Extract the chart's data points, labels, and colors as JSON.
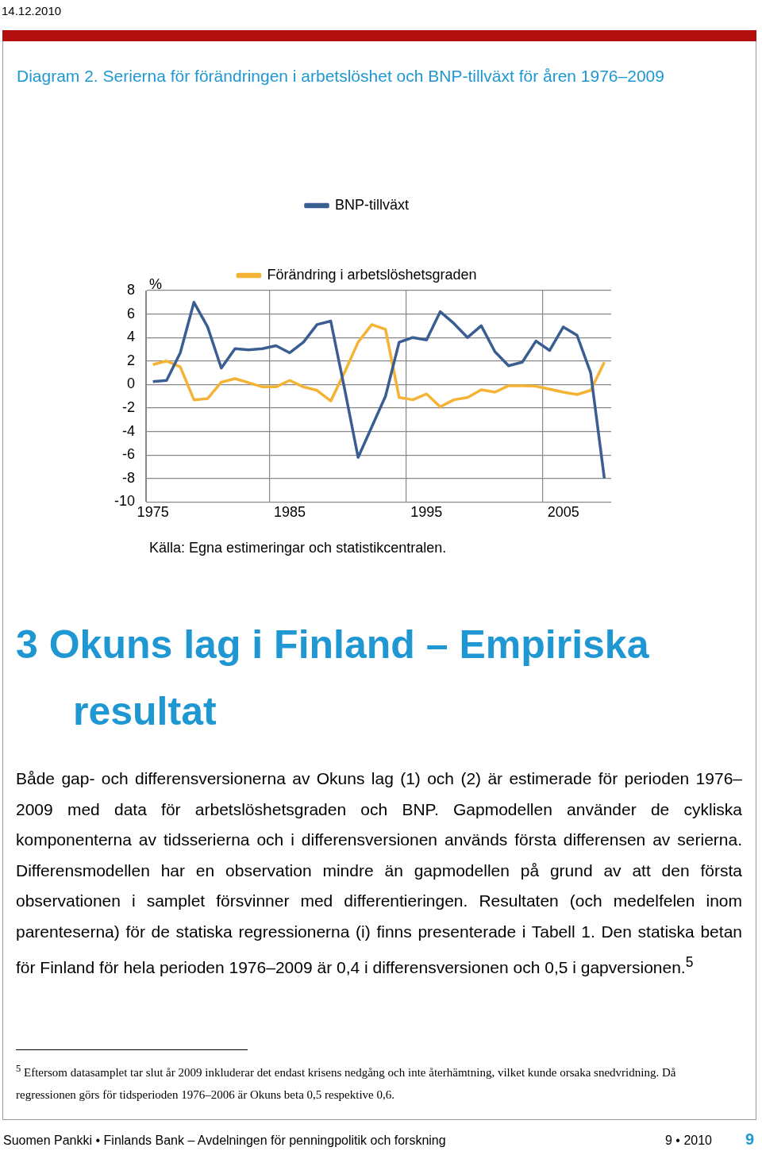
{
  "chart_data": {
    "type": "line",
    "title": "Diagram 2. Serierna för förändringen i arbetslöshet och BNP-tillväxt för åren 1976–2009",
    "ylabel": "%",
    "categories": [
      "1975",
      null,
      null,
      null,
      null,
      null,
      null,
      null,
      null,
      null,
      "1985",
      null,
      null,
      null,
      null,
      null,
      null,
      null,
      null,
      null,
      "1995",
      null,
      null,
      null,
      null,
      null,
      null,
      null,
      null,
      null,
      "2005",
      null,
      null,
      null
    ],
    "series": [
      {
        "name": "BNP-tillväxt",
        "color": "#3b5e92",
        "values": [
          0.25,
          0.35,
          2.7,
          7.0,
          4.9,
          1.4,
          3.05,
          2.95,
          3.05,
          3.3,
          2.7,
          3.6,
          5.1,
          5.4,
          -0.3,
          -6.2,
          -3.6,
          -1.0,
          3.6,
          4.0,
          3.8,
          6.2,
          5.2,
          4.0,
          5.0,
          2.8,
          1.6,
          1.9,
          3.7,
          2.9,
          4.9,
          4.2,
          1.0,
          -8.0
        ]
      },
      {
        "name": "Förändring i arbetslöshetsgraden",
        "color": "#f5b335",
        "values": [
          1.7,
          2.0,
          1.5,
          -1.3,
          -1.2,
          0.2,
          0.5,
          0.15,
          -0.2,
          -0.2,
          0.35,
          -0.2,
          -0.5,
          -1.4,
          1.0,
          3.6,
          5.1,
          4.7,
          -1.1,
          -1.3,
          -0.8,
          -1.9,
          -1.3,
          -1.1,
          -0.45,
          -0.65,
          -0.1,
          -0.1,
          -0.15,
          -0.4,
          -0.65,
          -0.85,
          -0.5,
          1.9
        ]
      }
    ],
    "ylim": [
      -10,
      8
    ],
    "yticks": [
      -10,
      -8,
      -6,
      -4,
      -2,
      0,
      2,
      4,
      6,
      8
    ],
    "grid": true,
    "legend": "top",
    "marker": "none",
    "line_style": "solid",
    "annotations": [
      "Källa: Egna estimeringar och statistikcentralen.",
      "14.12.2010",
      "3   Okuns lag i Finland – Empiriska resultat",
      "Både gap- och differensversionerna av Okuns lag (1) och (2) är estimerade för perioden 1976–2009 med data för arbetslöshetsgraden och BNP. Gapmodellen använder de cykliska komponenterna av tidsserierna och i differensversionen används första differensen av serierna. Differensmodellen har en observation mindre än gapmodellen på grund av att den första observationen i samplet försvinner med differentieringen. Resultaten (och medelfelen inom parenteserna) för de statiska regressionerna (i) finns presenterade i Tabell 1. Den statiska betan för Finland för hela perioden 1976–2009 är 0,4 i differensversionen och 0,5 i gapversionen.$^{5}$",
      "$^{5}$ Eftersom datasamplet tar slut år 2009 inkluderar det endast krisens nedgång och inte återhämtning, vilket kunde orsaka snedvridning. Då regressionen görs för tidsperioden 1976–2006 är Okuns beta 0,5 respektive 0,6.",
      "Suomen Pankki • Finlands Bank – Avdelningen för penningpolitik och forskning",
      "9 • 2010",
      "9"
    ]
  }
}
